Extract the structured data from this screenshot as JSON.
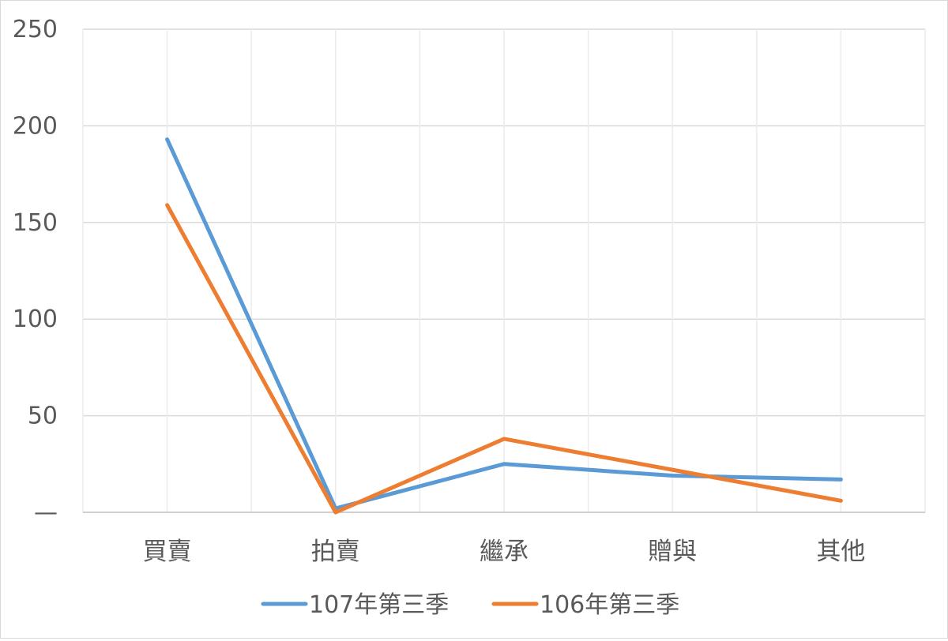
{
  "chart_data": {
    "type": "line",
    "title": "",
    "xlabel": "",
    "ylabel": "",
    "categories": [
      "買賣",
      "拍賣",
      "繼承",
      "贈與",
      "其他"
    ],
    "ylim": [
      0,
      250
    ],
    "yticks": [
      {
        "value": 0,
        "label": "—"
      },
      {
        "value": 50,
        "label": "50"
      },
      {
        "value": 100,
        "label": "100"
      },
      {
        "value": 150,
        "label": "150"
      },
      {
        "value": 200,
        "label": "200"
      },
      {
        "value": 250,
        "label": "250"
      }
    ],
    "grid": true,
    "legend_position": "bottom",
    "series": [
      {
        "name": "107年第三季",
        "color": "#5b9bd5",
        "values": [
          193,
          2,
          25,
          19,
          17
        ]
      },
      {
        "name": "106年第三季",
        "color": "#ed7d31",
        "values": [
          159,
          0,
          38,
          22,
          6
        ]
      }
    ]
  }
}
